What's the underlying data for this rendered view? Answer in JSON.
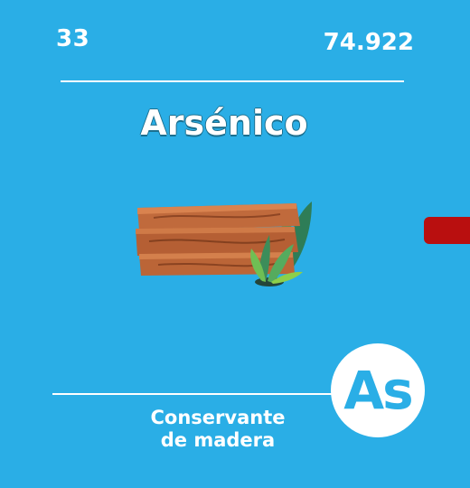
{
  "element": {
    "atomic_number": "33",
    "atomic_mass": "74.922",
    "name": "Arsénico",
    "symbol": "As",
    "use_line1": "Conservante",
    "use_line2": "de madera"
  },
  "illustration": {
    "icon": "wooden-planks-with-plants-icon"
  },
  "colors": {
    "background": "#2aaee6",
    "text": "#ffffff",
    "symbol_text": "#2aaee6",
    "side_tab": "#b90f0f",
    "wood": "#b9653a"
  }
}
